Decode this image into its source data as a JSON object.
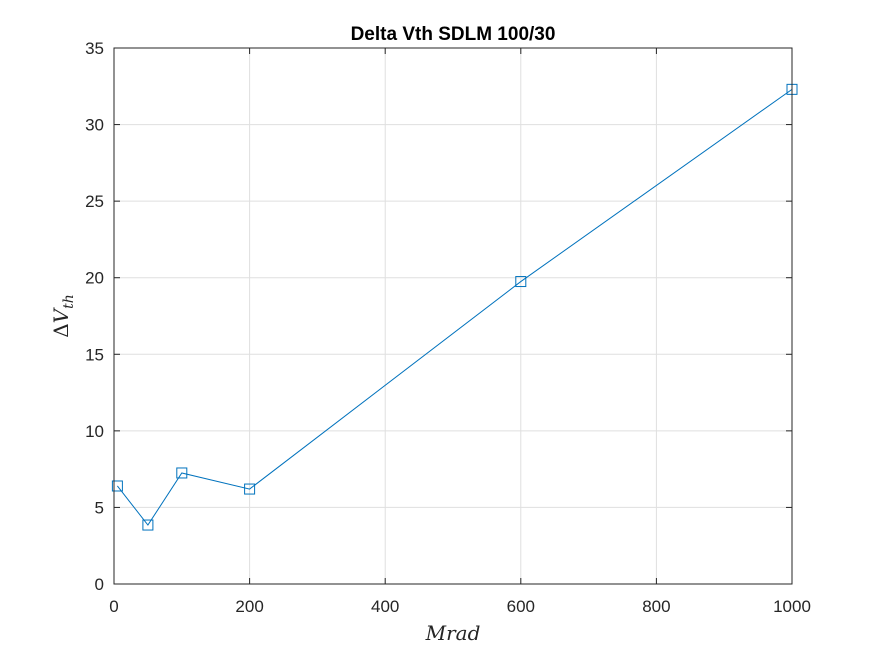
{
  "chart_data": {
    "type": "line",
    "title": "Delta Vth SDLM 100/30",
    "xlabel": "Mrad",
    "ylabel": {
      "symbol": "Δ",
      "main": "V",
      "subscript": "th"
    },
    "x": [
      5,
      50,
      100,
      200,
      600,
      1000
    ],
    "series": [
      {
        "values": [
          6.4,
          3.85,
          7.25,
          6.2,
          19.75,
          32.3
        ],
        "color": "#0072bd",
        "marker": "square"
      }
    ],
    "xlim": [
      0,
      1000
    ],
    "ylim": [
      0,
      35
    ],
    "xticks": [
      0,
      200,
      400,
      600,
      800,
      1000
    ],
    "yticks": [
      0,
      5,
      10,
      15,
      20,
      25,
      30,
      35
    ],
    "xtick_labels": [
      "0",
      "200",
      "400",
      "600",
      "800",
      "1000"
    ],
    "ytick_labels": [
      "0",
      "5",
      "10",
      "15",
      "20",
      "25",
      "30",
      "35"
    ],
    "grid": true,
    "legend": "none"
  }
}
